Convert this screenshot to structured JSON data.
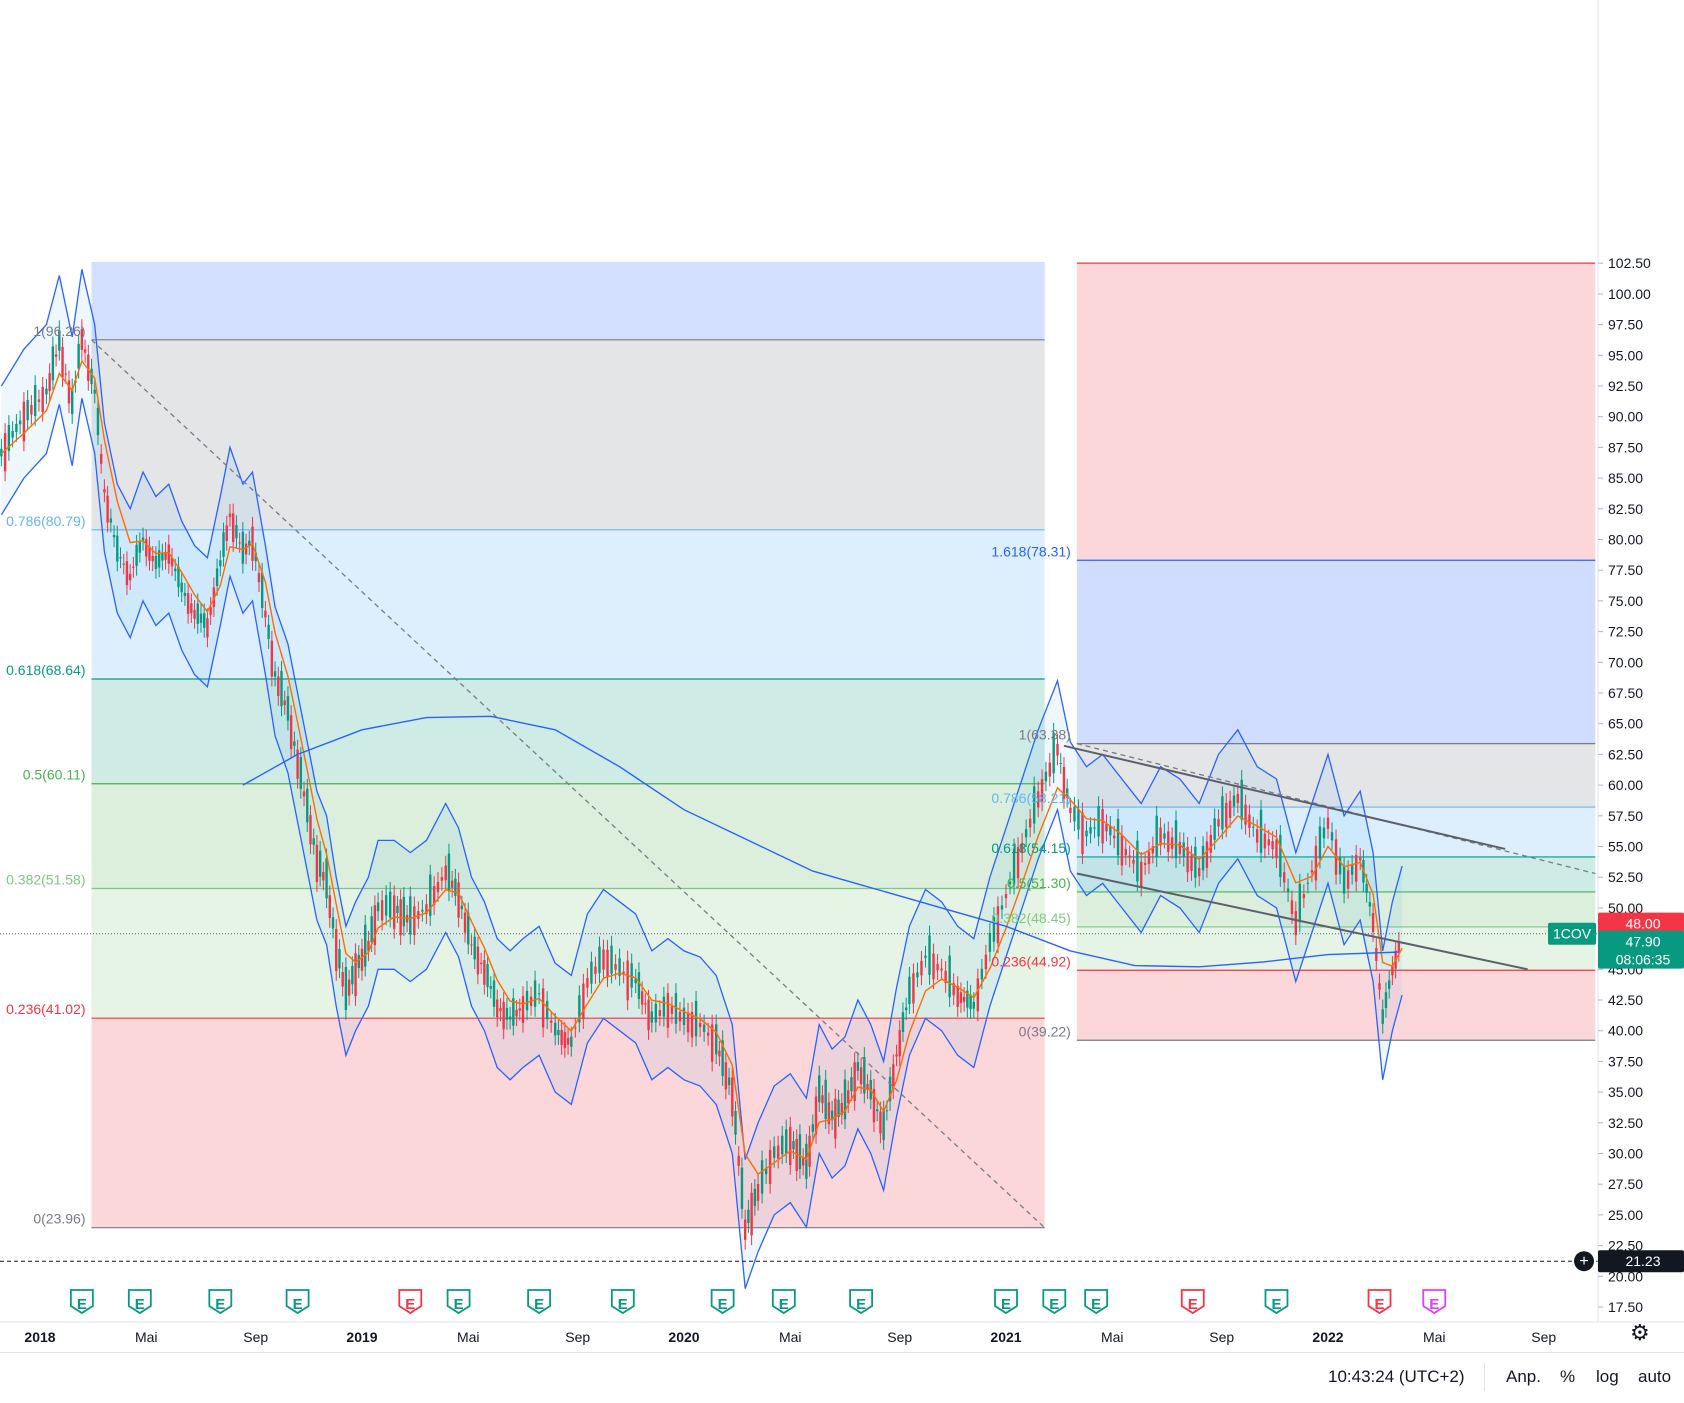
{
  "chart_data": {
    "type": "candlestick",
    "symbol": "1COV",
    "price_axis": {
      "ticks": [
        "17.50",
        "20.00",
        "22.50",
        "25.00",
        "27.50",
        "30.00",
        "32.50",
        "35.00",
        "37.50",
        "40.00",
        "42.50",
        "45.00",
        "47.50",
        "50.00",
        "52.50",
        "55.00",
        "57.50",
        "60.00",
        "62.50",
        "65.00",
        "67.50",
        "70.00",
        "72.50",
        "75.00",
        "77.50",
        "80.00",
        "82.50",
        "85.00",
        "87.50",
        "90.00",
        "92.50",
        "95.00",
        "97.50",
        "100.00",
        "102.50"
      ],
      "range": [
        16.0,
        102.5
      ]
    },
    "time_axis": {
      "ticks": [
        {
          "label": "2018",
          "year": true,
          "t": 2018.0
        },
        {
          "label": "Mai",
          "t": 2018.33
        },
        {
          "label": "Sep",
          "t": 2018.67
        },
        {
          "label": "2019",
          "year": true,
          "t": 2019.0
        },
        {
          "label": "Mai",
          "t": 2019.33
        },
        {
          "label": "Sep",
          "t": 2019.67
        },
        {
          "label": "2020",
          "year": true,
          "t": 2020.0
        },
        {
          "label": "Mai",
          "t": 2020.33
        },
        {
          "label": "Sep",
          "t": 2020.67
        },
        {
          "label": "2021",
          "year": true,
          "t": 2021.0
        },
        {
          "label": "Mai",
          "t": 2021.33
        },
        {
          "label": "Sep",
          "t": 2021.67
        },
        {
          "label": "2022",
          "year": true,
          "t": 2022.0
        },
        {
          "label": "Mai",
          "t": 2022.33
        },
        {
          "label": "Sep",
          "t": 2022.67
        }
      ]
    },
    "fib_retracement_1": {
      "t_start": 2018.16,
      "t_end": 2021.12,
      "high": 96.26,
      "low": 23.96,
      "levels": [
        {
          "label": "1(96.26)",
          "value": 96.26,
          "color": "#787b86"
        },
        {
          "label": "0.786(80.79)",
          "value": 80.79,
          "color": "#64b5f6"
        },
        {
          "label": "0.618(68.64)",
          "value": 68.64,
          "color": "#089981"
        },
        {
          "label": "0.5(60.11)",
          "value": 60.11,
          "color": "#4caf50"
        },
        {
          "label": "0.382(51.58)",
          "value": 51.58,
          "color": "#81c784"
        },
        {
          "label": "0.236(41.02)",
          "value": 41.02,
          "color": "#f23645"
        },
        {
          "label": "0(23.96)",
          "value": 23.96,
          "color": "#787b86"
        }
      ]
    },
    "fib_retracement_2": {
      "t_start": 2021.22,
      "t_end": 2022.83,
      "high": 63.38,
      "low": 39.22,
      "levels": [
        {
          "label": "1.618(78.31)",
          "value": 78.31,
          "color": "#2962ff"
        },
        {
          "label": "1(63.38)",
          "value": 63.38,
          "color": "#787b86"
        },
        {
          "label": "0.786(58.21)",
          "value": 58.21,
          "color": "#64b5f6"
        },
        {
          "label": "0.618(54.15)",
          "value": 54.15,
          "color": "#089981"
        },
        {
          "label": "0.5(51.30)",
          "value": 51.3,
          "color": "#4caf50"
        },
        {
          "label": "0.382(48.45)",
          "value": 48.45,
          "color": "#81c784"
        },
        {
          "label": "0.236(44.92)",
          "value": 44.92,
          "color": "#f23645"
        },
        {
          "label": "0(39.22)",
          "value": 39.22,
          "color": "#787b86"
        }
      ]
    },
    "channel": {
      "upper": {
        "t1": 2021.18,
        "p1": 63.2,
        "t2": 2022.55,
        "p2": 54.8
      },
      "lower": {
        "t1": 2021.22,
        "p1": 52.8,
        "t2": 2022.62,
        "p2": 45.0
      }
    },
    "trend_dashed": [
      {
        "t1": 2018.16,
        "p1": 96.26,
        "t2": 2021.12,
        "p2": 23.96
      },
      {
        "t1": 2021.22,
        "p1": 63.38,
        "t2": 2022.83,
        "p2": 52.8
      }
    ],
    "horizontal_line": {
      "value": 21.23,
      "label": "21.23"
    },
    "price_line": {
      "value": 47.9
    },
    "ask_label": "48.00",
    "last_price_label": "47.90",
    "countdown": "08:06:35",
    "price_series": [
      [
        2017.88,
        87.0
      ],
      [
        2017.95,
        90.0
      ],
      [
        2018.02,
        92.0
      ],
      [
        2018.06,
        96.0
      ],
      [
        2018.1,
        91.0
      ],
      [
        2018.13,
        96.5
      ],
      [
        2018.17,
        92.0
      ],
      [
        2018.2,
        84.0
      ],
      [
        2018.24,
        79.0
      ],
      [
        2018.28,
        77.0
      ],
      [
        2018.32,
        80.0
      ],
      [
        2018.36,
        78.0
      ],
      [
        2018.4,
        79.0
      ],
      [
        2018.44,
        76.0
      ],
      [
        2018.48,
        74.0
      ],
      [
        2018.52,
        73.0
      ],
      [
        2018.56,
        78.0
      ],
      [
        2018.59,
        82.0
      ],
      [
        2018.63,
        79.0
      ],
      [
        2018.66,
        80.0
      ],
      [
        2018.7,
        74.0
      ],
      [
        2018.73,
        69.0
      ],
      [
        2018.77,
        66.0
      ],
      [
        2018.8,
        62.0
      ],
      [
        2018.83,
        58.0
      ],
      [
        2018.86,
        54.0
      ],
      [
        2018.89,
        52.0
      ],
      [
        2018.92,
        47.0
      ],
      [
        2018.95,
        43.0
      ],
      [
        2018.98,
        45.0
      ],
      [
        2019.02,
        47.0
      ],
      [
        2019.05,
        50.0
      ],
      [
        2019.1,
        50.0
      ],
      [
        2019.15,
        49.0
      ],
      [
        2019.2,
        50.0
      ],
      [
        2019.26,
        53.0
      ],
      [
        2019.3,
        51.0
      ],
      [
        2019.34,
        47.0
      ],
      [
        2019.38,
        45.0
      ],
      [
        2019.42,
        42.0
      ],
      [
        2019.46,
        41.0
      ],
      [
        2019.5,
        42.0
      ],
      [
        2019.55,
        43.0
      ],
      [
        2019.6,
        40.0
      ],
      [
        2019.65,
        39.0
      ],
      [
        2019.7,
        44.0
      ],
      [
        2019.75,
        46.0
      ],
      [
        2019.8,
        45.0
      ],
      [
        2019.85,
        44.0
      ],
      [
        2019.9,
        41.0
      ],
      [
        2019.95,
        42.0
      ],
      [
        2020.0,
        41.0
      ],
      [
        2020.05,
        40.5
      ],
      [
        2020.1,
        39.0
      ],
      [
        2020.15,
        35.0
      ],
      [
        2020.19,
        24.0
      ],
      [
        2020.23,
        27.0
      ],
      [
        2020.28,
        30.0
      ],
      [
        2020.33,
        31.0
      ],
      [
        2020.38,
        29.0
      ],
      [
        2020.42,
        35.0
      ],
      [
        2020.46,
        33.0
      ],
      [
        2020.5,
        34.0
      ],
      [
        2020.54,
        37.0
      ],
      [
        2020.58,
        35.0
      ],
      [
        2020.62,
        32.0
      ],
      [
        2020.66,
        38.0
      ],
      [
        2020.7,
        43.0
      ],
      [
        2020.75,
        46.0
      ],
      [
        2020.8,
        45.0
      ],
      [
        2020.85,
        43.0
      ],
      [
        2020.9,
        42.0
      ],
      [
        2020.95,
        47.0
      ],
      [
        2021.0,
        51.0
      ],
      [
        2021.05,
        55.0
      ],
      [
        2021.1,
        59.0
      ],
      [
        2021.16,
        63.0
      ],
      [
        2021.2,
        58.0
      ],
      [
        2021.25,
        56.0
      ],
      [
        2021.3,
        57.0
      ],
      [
        2021.36,
        55.0
      ],
      [
        2021.42,
        53.0
      ],
      [
        2021.48,
        56.0
      ],
      [
        2021.54,
        55.0
      ],
      [
        2021.6,
        53.0
      ],
      [
        2021.66,
        57.0
      ],
      [
        2021.72,
        59.0
      ],
      [
        2021.78,
        56.0
      ],
      [
        2021.84,
        55.0
      ],
      [
        2021.9,
        49.0
      ],
      [
        2021.95,
        53.0
      ],
      [
        2022.0,
        57.0
      ],
      [
        2022.05,
        52.0
      ],
      [
        2022.1,
        54.0
      ],
      [
        2022.14,
        49.0
      ],
      [
        2022.17,
        41.0
      ],
      [
        2022.2,
        45.0
      ],
      [
        2022.23,
        47.9
      ]
    ],
    "sma200": [
      [
        2018.63,
        60.0
      ],
      [
        2018.8,
        62.5
      ],
      [
        2019.0,
        64.5
      ],
      [
        2019.2,
        65.5
      ],
      [
        2019.4,
        65.6
      ],
      [
        2019.6,
        64.5
      ],
      [
        2019.8,
        61.5
      ],
      [
        2020.0,
        58.0
      ],
      [
        2020.2,
        55.5
      ],
      [
        2020.4,
        53.0
      ],
      [
        2020.6,
        51.5
      ],
      [
        2020.8,
        50.0
      ],
      [
        2021.0,
        48.5
      ],
      [
        2021.2,
        46.5
      ],
      [
        2021.4,
        45.3
      ],
      [
        2021.6,
        45.2
      ],
      [
        2021.8,
        45.6
      ],
      [
        2022.0,
        46.2
      ],
      [
        2022.22,
        46.4
      ]
    ],
    "earnings_markers": [
      {
        "t": 2018.13,
        "color": "#089981"
      },
      {
        "t": 2018.31,
        "color": "#089981"
      },
      {
        "t": 2018.56,
        "color": "#089981"
      },
      {
        "t": 2018.8,
        "color": "#089981"
      },
      {
        "t": 2019.15,
        "color": "#f23645"
      },
      {
        "t": 2019.3,
        "color": "#089981"
      },
      {
        "t": 2019.55,
        "color": "#089981"
      },
      {
        "t": 2019.81,
        "color": "#089981"
      },
      {
        "t": 2020.12,
        "color": "#089981"
      },
      {
        "t": 2020.31,
        "color": "#089981"
      },
      {
        "t": 2020.55,
        "color": "#089981"
      },
      {
        "t": 2021.0,
        "color": "#089981"
      },
      {
        "t": 2021.15,
        "color": "#089981"
      },
      {
        "t": 2021.28,
        "color": "#089981"
      },
      {
        "t": 2021.58,
        "color": "#f23645"
      },
      {
        "t": 2021.84,
        "color": "#089981"
      },
      {
        "t": 2022.16,
        "color": "#f23645"
      },
      {
        "t": 2022.33,
        "color": "#e040fb"
      }
    ]
  },
  "status": {
    "clock": "10:43:24 (UTC+2)",
    "adj": "Anp.",
    "percent": "%",
    "log": "log",
    "auto": "auto"
  }
}
